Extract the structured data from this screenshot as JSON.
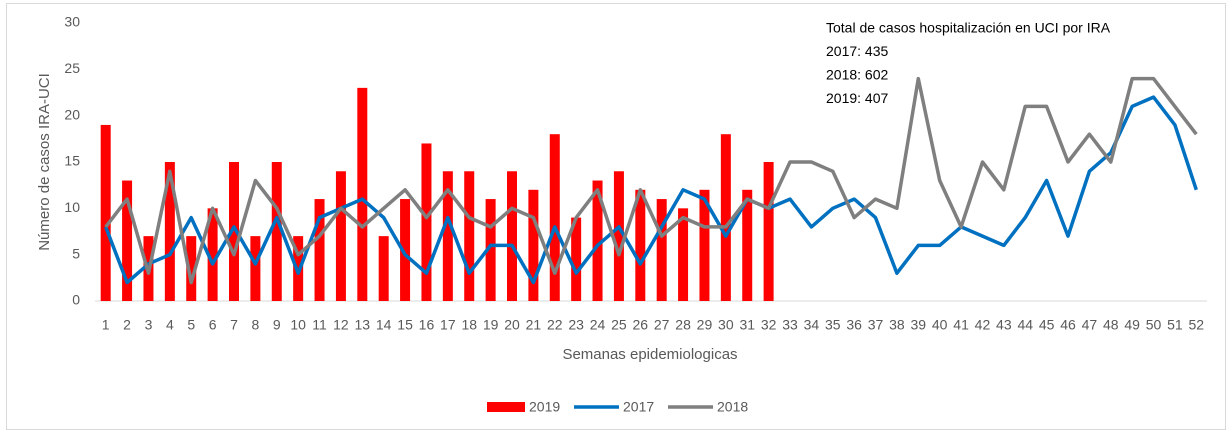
{
  "chart_data": {
    "type": "combo",
    "y_label": "Número de casos IRA-UCI",
    "x_label": "Semanas epidemiologicas",
    "annotations": [
      "Total de casos hospitalización  en UCI por IRA",
      "2017: 435",
      "2018: 602",
      "2019: 407"
    ],
    "categories": [
      "1",
      "2",
      "3",
      "4",
      "5",
      "6",
      "7",
      "8",
      "9",
      "10",
      "11",
      "12",
      "13",
      "14",
      "15",
      "16",
      "17",
      "18",
      "19",
      "20",
      "21",
      "22",
      "23",
      "24",
      "25",
      "26",
      "27",
      "28",
      "29",
      "30",
      "31",
      "32",
      "33",
      "34",
      "35",
      "36",
      "37",
      "38",
      "39",
      "40",
      "41",
      "42",
      "43",
      "44",
      "45",
      "46",
      "47",
      "48",
      "49",
      "50",
      "51",
      "52"
    ],
    "series": [
      {
        "name": "2019",
        "type": "bar",
        "color": "#ff0000",
        "values": [
          19,
          13,
          7,
          15,
          7,
          10,
          15,
          7,
          15,
          7,
          11,
          14,
          23,
          7,
          11,
          17,
          14,
          14,
          11,
          14,
          12,
          18,
          9,
          13,
          14,
          12,
          11,
          10,
          12,
          18,
          12,
          15,
          null,
          null,
          null,
          null,
          null,
          null,
          null,
          null,
          null,
          null,
          null,
          null,
          null,
          null,
          null,
          null,
          null,
          null,
          null,
          null
        ]
      },
      {
        "name": "2017",
        "type": "line",
        "color": "#0070c0",
        "values": [
          8,
          2,
          4,
          5,
          9,
          4,
          8,
          4,
          9,
          3,
          9,
          10,
          11,
          9,
          5,
          3,
          9,
          3,
          6,
          6,
          2,
          8,
          3,
          6,
          8,
          4,
          8,
          12,
          11,
          7,
          11,
          10,
          11,
          8,
          10,
          11,
          9,
          3,
          6,
          6,
          8,
          7,
          6,
          9,
          13,
          7,
          14,
          16,
          21,
          22,
          19,
          12
        ]
      },
      {
        "name": "2018",
        "type": "line",
        "color": "#7f7f7f",
        "values": [
          8,
          11,
          3,
          14,
          2,
          10,
          5,
          13,
          10,
          5,
          7,
          10,
          8,
          10,
          12,
          9,
          12,
          9,
          8,
          10,
          9,
          3,
          9,
          12,
          5,
          12,
          7,
          9,
          8,
          8,
          11,
          10,
          15,
          15,
          14,
          9,
          11,
          10,
          24,
          13,
          8,
          15,
          12,
          21,
          21,
          15,
          18,
          15,
          24,
          24,
          21,
          18
        ]
      }
    ],
    "ylim": [
      0,
      30
    ],
    "yticks": [
      0,
      5,
      10,
      15,
      20,
      25,
      30
    ],
    "grid": false,
    "legend": "bottom"
  }
}
